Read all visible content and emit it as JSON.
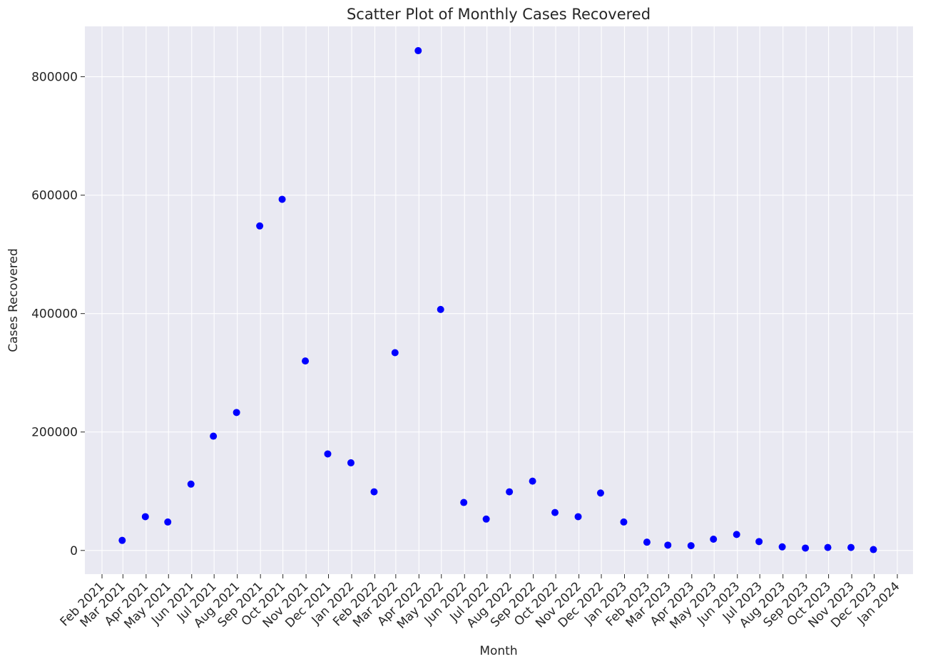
{
  "chart_data": {
    "type": "scatter",
    "title": "Scatter Plot of Monthly Cases Recovered",
    "xlabel": "Month",
    "ylabel": "Cases Recovered",
    "x_ticks": [
      "Feb 2021",
      "Mar 2021",
      "Apr 2021",
      "May 2021",
      "Jun 2021",
      "Jul 2021",
      "Aug 2021",
      "Sep 2021",
      "Oct 2021",
      "Nov 2021",
      "Dec 2021",
      "Jan 2022",
      "Feb 2022",
      "Mar 2022",
      "Apr 2022",
      "May 2022",
      "Jun 2022",
      "Jul 2022",
      "Aug 2022",
      "Sep 2022",
      "Oct 2022",
      "Nov 2022",
      "Dec 2022",
      "Jan 2023",
      "Feb 2023",
      "Mar 2023",
      "Apr 2023",
      "May 2023",
      "Jun 2023",
      "Jul 2023",
      "Aug 2023",
      "Sep 2023",
      "Oct 2023",
      "Nov 2023",
      "Dec 2023",
      "Jan 2024"
    ],
    "y_ticks": [
      0,
      200000,
      400000,
      600000,
      800000
    ],
    "ylim": [
      -40000,
      885000
    ],
    "grid": true,
    "point_color": "#0000ff",
    "background_color": "#e9e9f2",
    "points": [
      {
        "x": "2021-02-28",
        "y": 17000
      },
      {
        "x": "2021-03-31",
        "y": 57000
      },
      {
        "x": "2021-04-30",
        "y": 48000
      },
      {
        "x": "2021-05-31",
        "y": 112000
      },
      {
        "x": "2021-06-30",
        "y": 193000
      },
      {
        "x": "2021-07-31",
        "y": 233000
      },
      {
        "x": "2021-08-31",
        "y": 548000
      },
      {
        "x": "2021-09-30",
        "y": 593000
      },
      {
        "x": "2021-10-31",
        "y": 320000
      },
      {
        "x": "2021-11-30",
        "y": 163000
      },
      {
        "x": "2021-12-31",
        "y": 148000
      },
      {
        "x": "2022-01-31",
        "y": 99000
      },
      {
        "x": "2022-02-28",
        "y": 334000
      },
      {
        "x": "2022-03-31",
        "y": 844000
      },
      {
        "x": "2022-04-30",
        "y": 407000
      },
      {
        "x": "2022-05-31",
        "y": 81000
      },
      {
        "x": "2022-06-30",
        "y": 53000
      },
      {
        "x": "2022-07-31",
        "y": 99000
      },
      {
        "x": "2022-08-31",
        "y": 117000
      },
      {
        "x": "2022-09-30",
        "y": 64000
      },
      {
        "x": "2022-10-31",
        "y": 57000
      },
      {
        "x": "2022-11-30",
        "y": 97000
      },
      {
        "x": "2022-12-31",
        "y": 48000
      },
      {
        "x": "2023-01-31",
        "y": 14000
      },
      {
        "x": "2023-02-28",
        "y": 9000
      },
      {
        "x": "2023-03-31",
        "y": 8000
      },
      {
        "x": "2023-04-30",
        "y": 19000
      },
      {
        "x": "2023-05-31",
        "y": 27000
      },
      {
        "x": "2023-06-30",
        "y": 15000
      },
      {
        "x": "2023-07-31",
        "y": 6000
      },
      {
        "x": "2023-08-31",
        "y": 4000
      },
      {
        "x": "2023-09-30",
        "y": 5000
      },
      {
        "x": "2023-10-31",
        "y": 5000
      },
      {
        "x": "2023-11-30",
        "y": 1500
      }
    ]
  }
}
